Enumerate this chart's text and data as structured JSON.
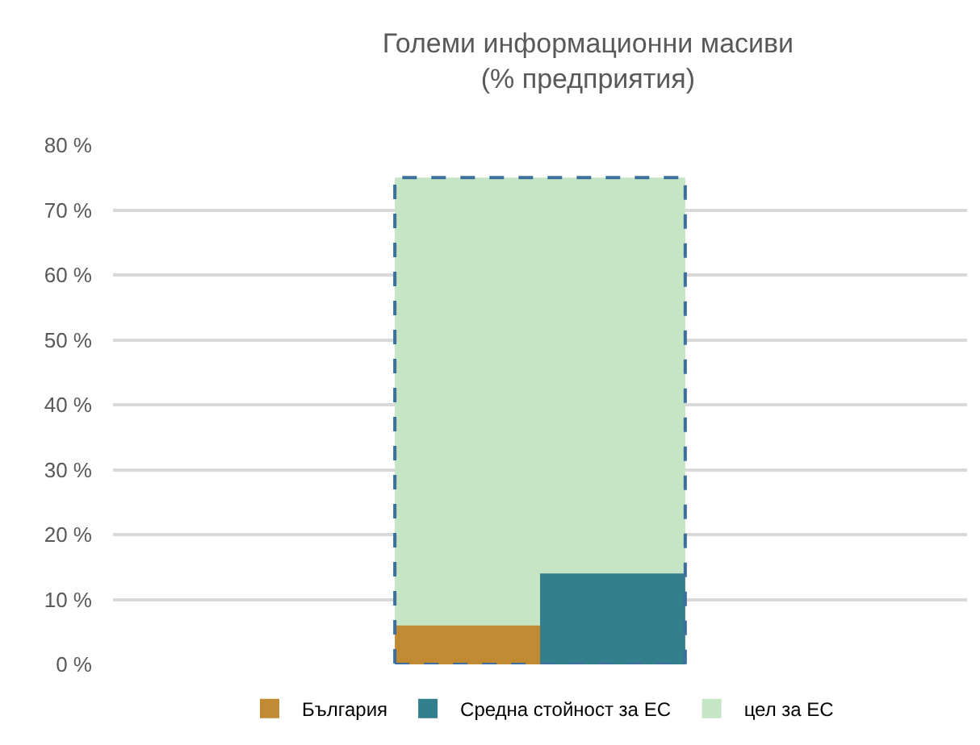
{
  "chart_data": {
    "type": "bar",
    "title": "Големи информационни масиви",
    "subtitle": "(% предприятия)",
    "categories": [
      null
    ],
    "series": [
      {
        "name": "България",
        "color": "#c08b32",
        "values": [
          6
        ]
      },
      {
        "name": "Средна стойност за ЕС",
        "color": "#337f8c",
        "values": [
          14
        ]
      },
      {
        "name": "цел за ЕС",
        "color": "#c6e5c4",
        "values": [
          75
        ],
        "line_style": "dashed"
      }
    ],
    "ylim": [
      0,
      80
    ],
    "yticks": [
      {
        "value": 0,
        "label": "0 %"
      },
      {
        "value": 10,
        "label": "10 %"
      },
      {
        "value": 20,
        "label": "20 %"
      },
      {
        "value": 30,
        "label": "30 %"
      },
      {
        "value": 40,
        "label": "40 %"
      },
      {
        "value": 50,
        "label": "50 %"
      },
      {
        "value": 60,
        "label": "60 %"
      },
      {
        "value": 70,
        "label": "70 %"
      },
      {
        "value": 80,
        "label": "80 %"
      }
    ],
    "grid": "y",
    "legend": "bottom"
  }
}
